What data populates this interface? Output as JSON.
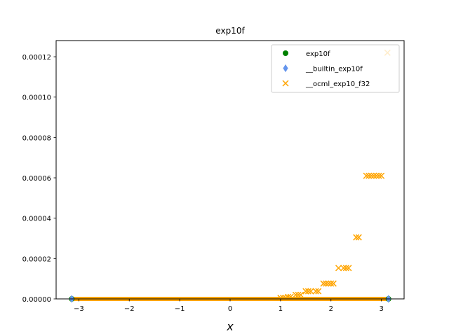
{
  "chart_data": {
    "type": "scatter",
    "title": "exp10f",
    "xlabel": "x",
    "ylabel": "",
    "xlim": [
      -3.45,
      3.45
    ],
    "ylim": [
      0,
      0.000128
    ],
    "xticks": [
      -3,
      -2,
      -1,
      0,
      1,
      2,
      3
    ],
    "xtick_labels": [
      "−3",
      "−2",
      "−1",
      "0",
      "1",
      "2",
      "3"
    ],
    "yticks": [
      0,
      2e-05,
      4e-05,
      6e-05,
      8e-05,
      0.0001,
      0.00012
    ],
    "ytick_labels": [
      "0.00000",
      "0.00002",
      "0.00004",
      "0.00006",
      "0.00008",
      "0.00010",
      "0.00012"
    ],
    "legend_position": "upper right",
    "series": [
      {
        "name": "exp10f",
        "marker": "circle",
        "color": "#008000",
        "x": [
          -3.14,
          3.14
        ],
        "y": [
          0,
          0
        ]
      },
      {
        "name": "__builtin_exp10f",
        "marker": "diamond",
        "color": "#6495ED",
        "x": [
          -3.14,
          3.14
        ],
        "y": [
          0,
          0
        ]
      },
      {
        "name": "__ocml_exp10_f32",
        "marker": "x",
        "color": "#FFA500",
        "x": [
          1.0,
          1.05,
          1.1,
          1.15,
          1.2,
          1.3,
          1.35,
          1.4,
          1.5,
          1.55,
          1.6,
          1.7,
          1.75,
          1.85,
          1.9,
          1.95,
          2.0,
          2.05,
          2.15,
          2.25,
          2.3,
          2.35,
          2.5,
          2.55,
          2.7,
          2.75,
          2.8,
          2.85,
          2.9,
          2.95,
          3.0,
          3.12
        ],
        "y": [
          5e-07,
          5e-07,
          5e-07,
          1e-06,
          1e-06,
          2e-06,
          2e-06,
          2e-06,
          3.8e-06,
          3.8e-06,
          3.8e-06,
          3.8e-06,
          3.8e-06,
          7.6e-06,
          7.6e-06,
          7.6e-06,
          7.6e-06,
          7.6e-06,
          1.53e-05,
          1.53e-05,
          1.53e-05,
          1.53e-05,
          3.05e-05,
          3.05e-05,
          6.1e-05,
          6.1e-05,
          6.1e-05,
          6.1e-05,
          6.1e-05,
          6.1e-05,
          6.1e-05,
          0.000122
        ]
      }
    ]
  }
}
